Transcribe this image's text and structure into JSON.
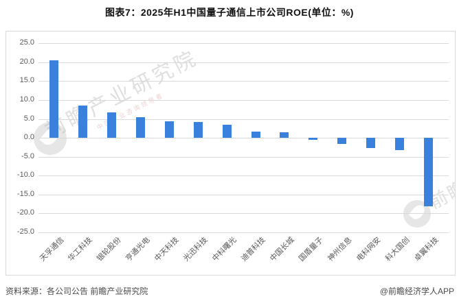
{
  "title": "图表7：2025年H1中国量子通信上市公司ROE(单位：%)",
  "chart_data": {
    "type": "bar",
    "title": "2025年H1中国量子通信上市公司ROE",
    "unit": "%",
    "categories": [
      "天孚通信",
      "华工科技",
      "银轮股份",
      "亨通光电",
      "中天科技",
      "光迅科技",
      "中科曙光",
      "迪普科技",
      "中国长城",
      "国盾量子",
      "神州信息",
      "电科网安",
      "科大国创",
      "卓翼科技"
    ],
    "values": [
      20.5,
      8.5,
      6.7,
      5.5,
      4.4,
      4.1,
      3.5,
      1.6,
      1.5,
      -0.6,
      -1.6,
      -2.8,
      -3.3,
      -18.1
    ],
    "ylim": [
      -25,
      25
    ],
    "ytick_step": 5,
    "grid": true,
    "legend": "none",
    "bar_color": "#3a81dd",
    "gridline_color": "#d9d9d9",
    "axis_label_color": "#595959"
  },
  "footer": {
    "source": "资料来源：各公司公告 前瞻产业研究院",
    "credit": "@前瞻经济学人APP"
  },
  "watermark": {
    "main": "前瞻产业研究院",
    "tagline": "中国产业咨询领导者",
    "corner": "前瞻"
  }
}
